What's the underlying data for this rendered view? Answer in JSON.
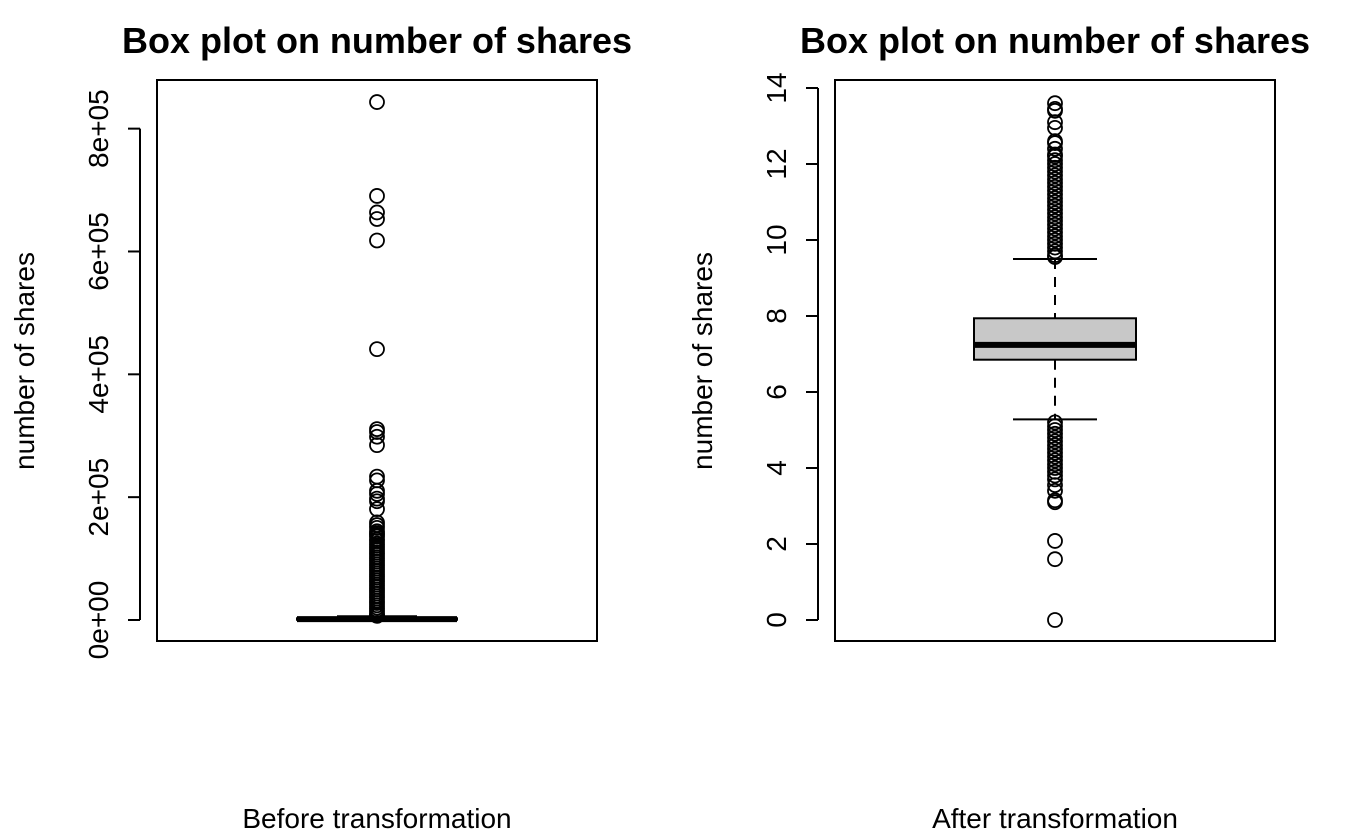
{
  "chart_data": [
    {
      "type": "box",
      "title": "Box plot on number of shares",
      "xlabel": "Before transformation",
      "ylabel": "number of shares",
      "ylim": [
        0,
        845000
      ],
      "yticks": [
        0,
        200000,
        400000,
        600000,
        800000
      ],
      "ytick_labels": [
        "0e+00",
        "2e+05",
        "4e+05",
        "6e+05",
        "8e+05"
      ],
      "box": {
        "whisker_low": 1,
        "q1": 946,
        "median": 1400,
        "q3": 2800,
        "whisker_high": 6200
      },
      "outliers": [
        843300,
        690400,
        663600,
        652900,
        617900,
        441000,
        310800,
        306100,
        298400,
        284700,
        233400,
        227300,
        210300,
        205200,
        197600,
        193400,
        180500,
        158900,
        154600,
        150000,
        144400,
        141400,
        138700,
        135800,
        131600,
        128500,
        124500,
        120700,
        117000,
        113300,
        109600,
        106000,
        102300,
        98600,
        94800,
        91000,
        87300,
        83700,
        79900,
        76200,
        72400,
        68700,
        65000,
        61300,
        57500,
        53800,
        50000,
        46400,
        42700,
        38900,
        35200,
        31400,
        27700,
        24000,
        20200,
        16500,
        12800,
        9100,
        7400,
        6800
      ]
    },
    {
      "type": "box",
      "title": "Box plot on number of shares",
      "xlabel": "After transformation",
      "ylabel": "number of shares",
      "ylim": [
        0,
        14
      ],
      "yticks": [
        0,
        2,
        4,
        6,
        8,
        10,
        12,
        14
      ],
      "ytick_labels": [
        "0",
        "2",
        "4",
        "6",
        "8",
        "10",
        "12",
        "14"
      ],
      "box": {
        "whisker_low": 5.28,
        "q1": 6.85,
        "median": 7.24,
        "q3": 7.94,
        "whisker_high": 9.5
      },
      "outliers": [
        13.6,
        13.45,
        13.4,
        13.1,
        12.95,
        12.6,
        12.55,
        12.4,
        12.25,
        12.2,
        12.1,
        12.0,
        11.9,
        11.8,
        11.7,
        11.6,
        11.5,
        11.4,
        11.3,
        11.2,
        11.1,
        11.0,
        10.9,
        10.8,
        10.7,
        10.6,
        10.5,
        10.4,
        10.3,
        10.2,
        10.1,
        10.0,
        9.9,
        9.8,
        9.7,
        9.6,
        9.55,
        5.2,
        5.1,
        5.0,
        4.9,
        4.8,
        4.7,
        4.6,
        4.5,
        4.4,
        4.3,
        4.2,
        4.1,
        4.0,
        3.9,
        3.8,
        3.7,
        3.55,
        3.4,
        3.15,
        3.1,
        2.08,
        1.6,
        0.0
      ]
    }
  ]
}
